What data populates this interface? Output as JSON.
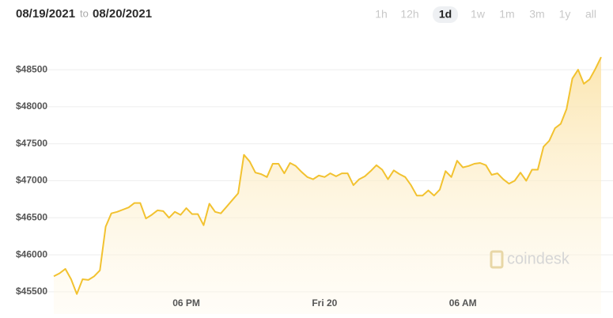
{
  "chart_data": {
    "type": "area",
    "start_date": "08/19/2021",
    "separator": "to",
    "end_date": "08/20/2021",
    "ranges": [
      "1h",
      "12h",
      "1d",
      "1w",
      "1m",
      "3m",
      "1y",
      "all"
    ],
    "selected_range": 2,
    "watermark": "coindesk",
    "color": "#f2c230",
    "values": [
      45710,
      45750,
      45810,
      45670,
      45470,
      45670,
      45660,
      45710,
      45790,
      46380,
      46560,
      46580,
      46610,
      46640,
      46700,
      46700,
      46490,
      46540,
      46600,
      46590,
      46500,
      46580,
      46540,
      46630,
      46550,
      46550,
      46400,
      46690,
      46580,
      46560,
      46650,
      46740,
      46830,
      47350,
      47260,
      47110,
      47090,
      47050,
      47230,
      47230,
      47100,
      47240,
      47200,
      47120,
      47050,
      47020,
      47070,
      47050,
      47100,
      47060,
      47100,
      47100,
      46940,
      47020,
      47060,
      47130,
      47210,
      47150,
      47020,
      47140,
      47090,
      47050,
      46940,
      46800,
      46800,
      46870,
      46800,
      46880,
      47130,
      47050,
      47270,
      47180,
      47200,
      47230,
      47240,
      47210,
      47080,
      47100,
      47020,
      46960,
      47000,
      47110,
      47000,
      47150,
      47150,
      47460,
      47540,
      47710,
      47770,
      47970,
      48380,
      48500,
      48310,
      48370,
      48510,
      48670
    ],
    "xlim": [
      0,
      95
    ],
    "xticks": [
      {
        "value": 23,
        "label": "06 PM"
      },
      {
        "value": 47,
        "label": "Fri 20"
      },
      {
        "value": 71,
        "label": "06 AM"
      }
    ],
    "ylim": [
      45200,
      48800
    ],
    "yticks": [
      {
        "value": 45500,
        "label": "$45500"
      },
      {
        "value": 46000,
        "label": "$46000"
      },
      {
        "value": 46500,
        "label": "$46500"
      },
      {
        "value": 47000,
        "label": "$47000"
      },
      {
        "value": 47500,
        "label": "$47500"
      },
      {
        "value": 48000,
        "label": "$48000"
      },
      {
        "value": 48500,
        "label": "$48500"
      }
    ],
    "grid": true
  }
}
